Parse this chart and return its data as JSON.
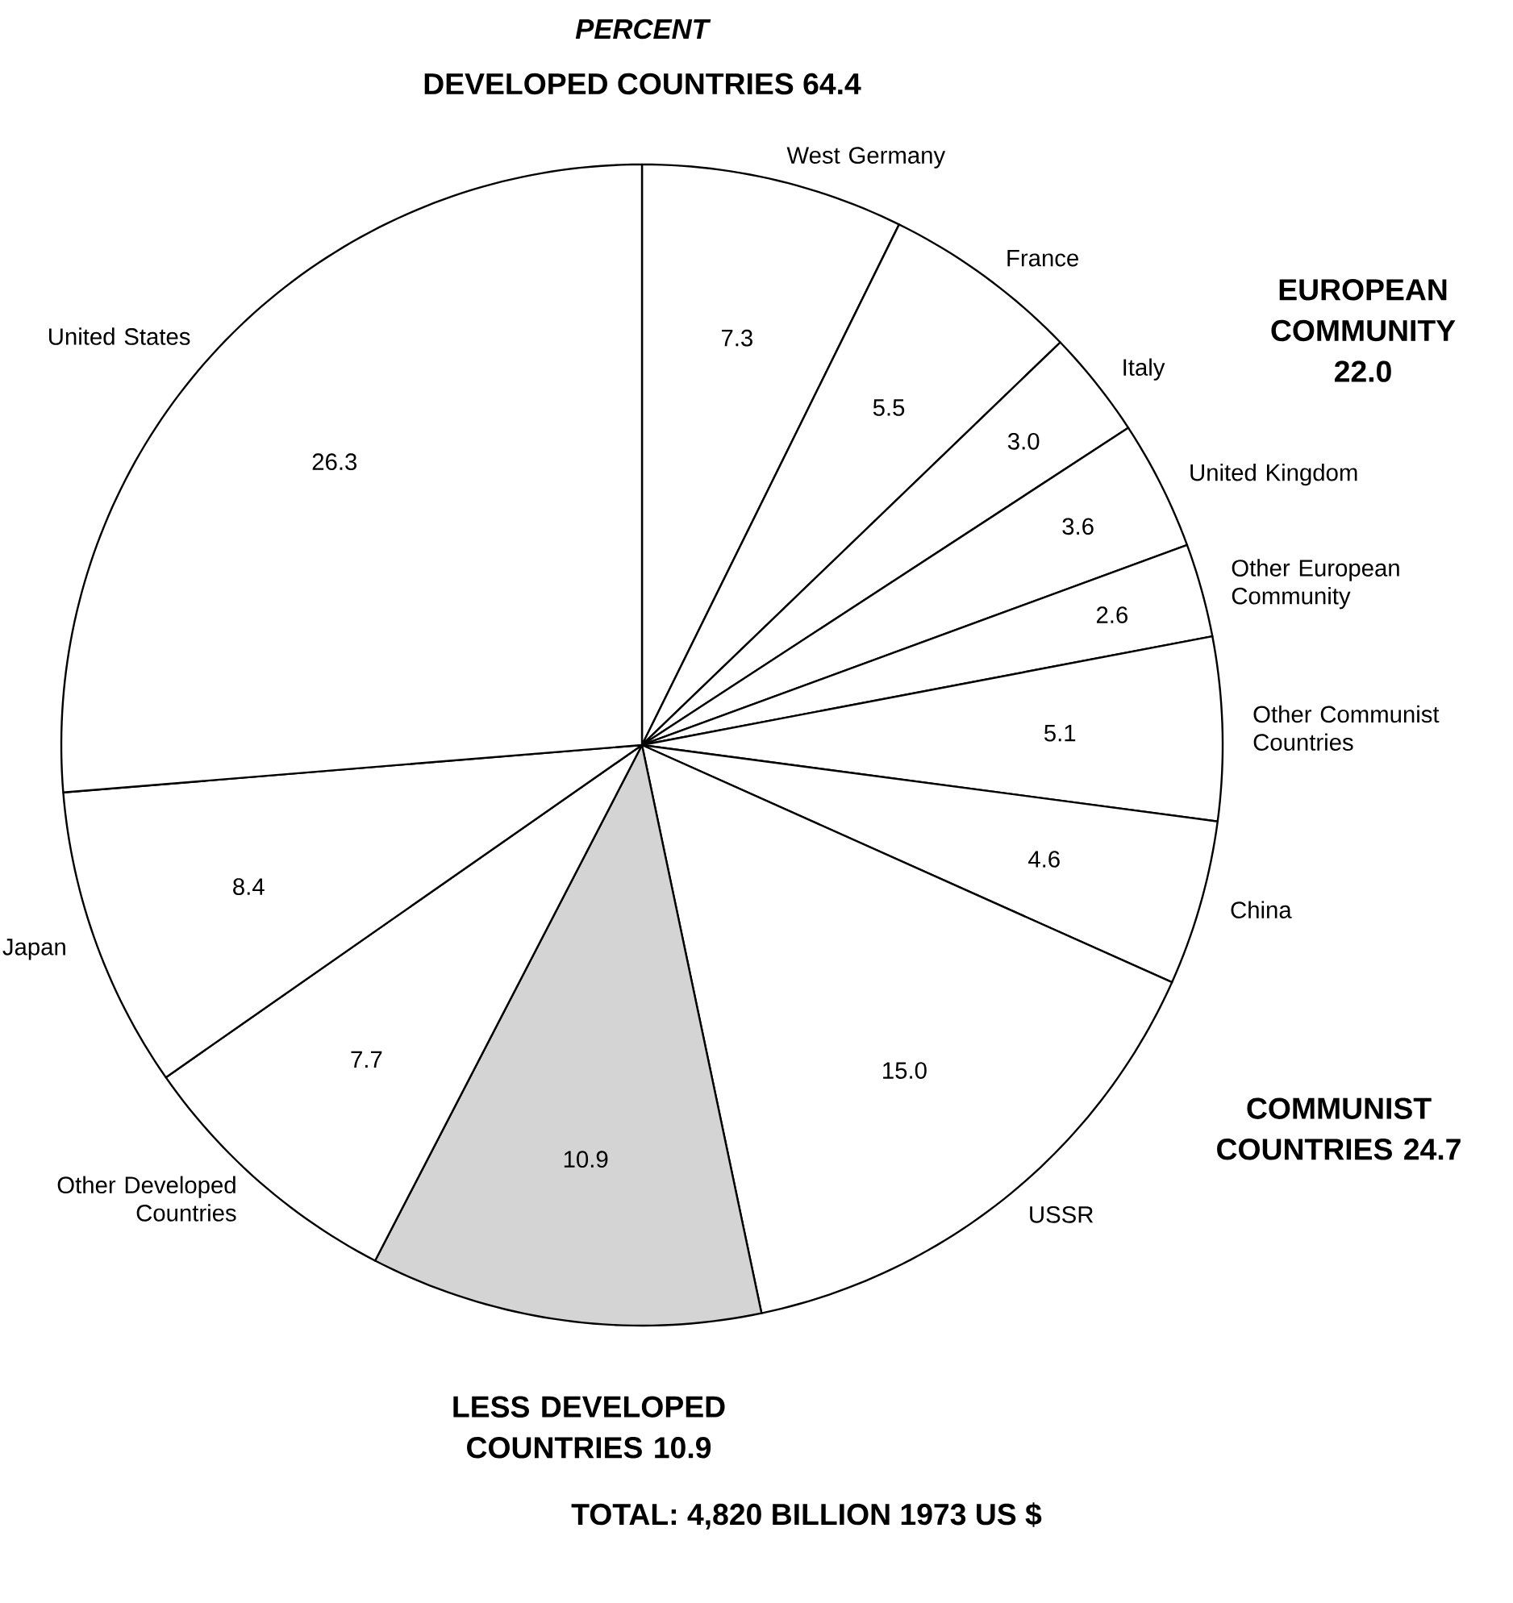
{
  "chart_data": {
    "type": "pie",
    "title": "PERCENT",
    "categories": [
      "West Germany",
      "France",
      "Italy",
      "United Kingdom",
      "Other European Community",
      "Other Communist Countries",
      "China",
      "USSR",
      null,
      "Other Developed Countries",
      "Japan",
      "United States"
    ],
    "values": [
      7.3,
      5.5,
      3.0,
      3.6,
      2.6,
      5.1,
      4.6,
      15.0,
      10.9,
      7.7,
      8.4,
      26.3
    ],
    "colors": [
      "#ffffff",
      "#ffffff",
      "#ffffff",
      "#ffffff",
      "#ffffff",
      "#ffffff",
      "#ffffff",
      "#ffffff",
      "#d4d4d4",
      "#ffffff",
      "#ffffff",
      "#ffffff"
    ],
    "value_labels": [
      "7.3",
      "5.5",
      "3.0",
      "3.6",
      "2.6",
      "5.1",
      "4.6",
      "15.0",
      "10.9",
      "7.7",
      "8.4",
      "26.3"
    ],
    "annotations": [
      "DEVELOPED COUNTRIES 64.4",
      "EUROPEAN COMMUNITY 22.0",
      "COMMUNIST COUNTRIES 24.7",
      "LESS DEVELOPED COUNTRIES 10.9",
      "TOTAL: 4,820 BILLION 1973 US $"
    ]
  }
}
